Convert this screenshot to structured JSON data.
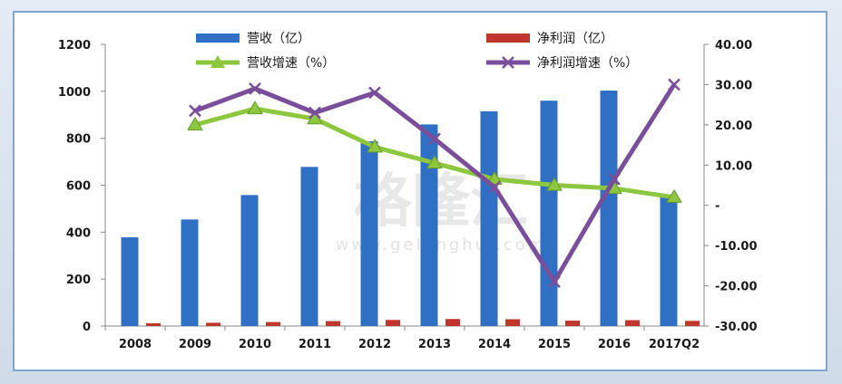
{
  "watermark": {
    "logo": "格隆汇",
    "url": "www.gelonghui.com"
  },
  "colors": {
    "revenue": "#2f6fc4",
    "net_profit": "#c0352c",
    "revenue_growth": "#8dc63f",
    "net_profit_growth": "#7a4f9a"
  },
  "chart_data": {
    "type": "bar",
    "categories": [
      "2008",
      "2009",
      "2010",
      "2011",
      "2012",
      "2013",
      "2014",
      "2015",
      "2016",
      "2017Q2"
    ],
    "y_left": {
      "min": 0,
      "max": 1200,
      "ticks": [
        "0",
        "200",
        "400",
        "600",
        "800",
        "1000",
        "1200"
      ]
    },
    "y_right": {
      "min": -30,
      "max": 40,
      "ticks": [
        "-30.00",
        "-20.00",
        "-10.00",
        "-",
        "10.00",
        "20.00",
        "30.00",
        "40.00"
      ]
    },
    "series": [
      {
        "name": "营收（亿）",
        "type": "bar",
        "axis": "left",
        "color": "#2f6fc4",
        "values": [
          378,
          454,
          558,
          678,
          787,
          859,
          915,
          960,
          1003,
          550
        ]
      },
      {
        "name": "净利润（亿）",
        "type": "bar",
        "axis": "left",
        "color": "#c0352c",
        "values": [
          12,
          14,
          17,
          21,
          26,
          30,
          29,
          23,
          25,
          22
        ]
      },
      {
        "name": "营收增速（%）",
        "type": "line",
        "marker": "triangle",
        "axis": "right",
        "color": "#8dc63f",
        "values": [
          null,
          20,
          24,
          21.5,
          14.5,
          10.5,
          6.5,
          5,
          4.2,
          2
        ]
      },
      {
        "name": "净利润增速（%）",
        "type": "line",
        "marker": "x",
        "axis": "right",
        "color": "#7a4f9a",
        "values": [
          null,
          23.5,
          29,
          23,
          28,
          16.5,
          4.5,
          -19,
          6.5,
          30
        ]
      }
    ],
    "legend_position": "top"
  }
}
